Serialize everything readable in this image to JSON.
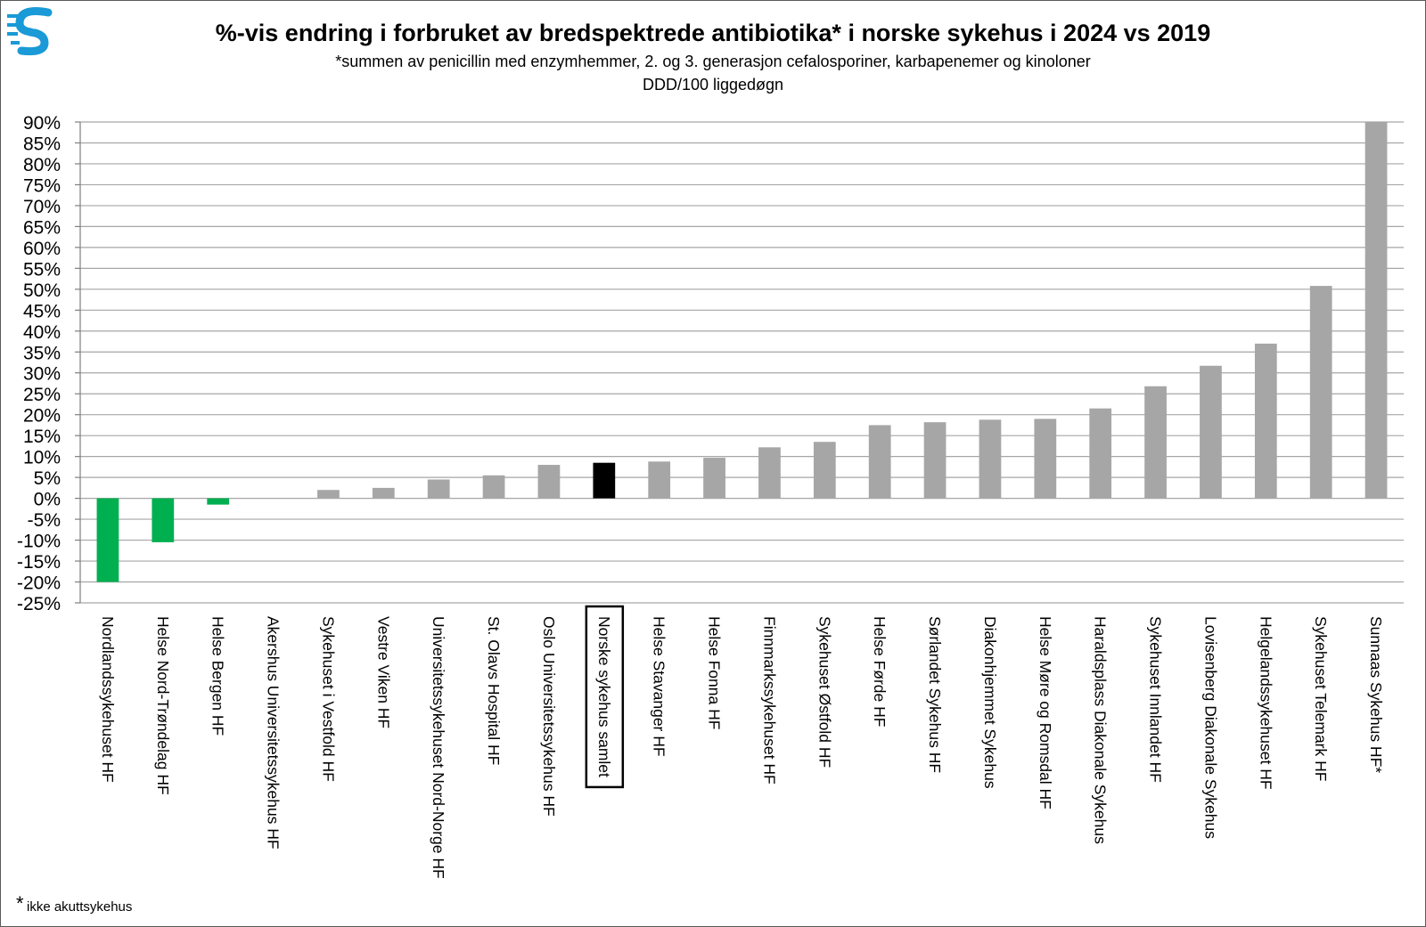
{
  "chart_data": {
    "type": "bar",
    "title": "%-vis endring i forbruket av bredspektrede antibiotika* i norske sykehus i 2024 vs 2019",
    "subtitle": "*summen av penicillin med enzymhemmer, 2. og 3. generasjon cefalosporiner, karbapenemer og kinoloner",
    "ylabel": "DDD/100 liggedøgn",
    "xlabel": "",
    "ylim": [
      -25,
      90
    ],
    "ytick_step": 5,
    "ytick_format": "percent",
    "grid": true,
    "legend": "none",
    "categories": [
      "Nordlandssykehuset HF",
      "Helse Nord-Trøndelag HF",
      "Helse Bergen HF",
      "Akershus Universitetssykehus HF",
      "Sykehuset i Vestfold HF",
      "Vestre Viken HF",
      "Universitetssykehuset Nord-Norge HF",
      "St. Olavs Hospital HF",
      "Oslo Universitetssykehus HF",
      "Norske sykehus samlet",
      "Helse Stavanger HF",
      "Helse Fonna HF",
      "Finnmarkssykehuset HF",
      "Sykehuset Østfold HF",
      "Helse Førde HF",
      "Sørlandet Sykehus HF",
      "Diakonhjemmet Sykehus",
      "Helse Møre og Romsdal HF",
      "Haraldsplass Diakonale Sykehus",
      "Sykehuset Innlandet HF",
      "Lovisenberg Diakonale Sykehus",
      "Helgelandssykehuset HF",
      "Sykehuset Telemark HF",
      "Sunnaas Sykehus HF*"
    ],
    "values": [
      -20,
      -10.5,
      -1.5,
      0,
      2,
      2.5,
      4.5,
      5.5,
      8,
      8.5,
      8.8,
      9.7,
      12.2,
      13.5,
      17.5,
      18.2,
      18.8,
      19,
      21.5,
      26.8,
      31.7,
      37,
      50.8,
      90
    ],
    "highlight_index": 9,
    "colors": {
      "positive": "#a6a6a6",
      "negative": "#00b050",
      "highlight": "#000000",
      "grid": "#a6a6a6"
    }
  },
  "footnote": {
    "marker": "*",
    "text": "ikke akuttsykehus"
  },
  "logo": {
    "icon": "letter-s-logo-icon",
    "color": "#1a9ad6"
  }
}
